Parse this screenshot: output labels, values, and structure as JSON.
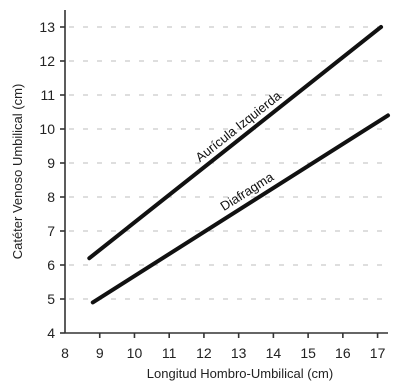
{
  "chart_data": {
    "type": "line",
    "xlabel": "Longitud Hombro-Umbilical (cm)",
    "ylabel": "Catéter Venoso Umbilical (cm)",
    "xlim": [
      8,
      17.3
    ],
    "ylim": [
      4,
      13.5
    ],
    "xticks": [
      8,
      9,
      10,
      11,
      12,
      13,
      14,
      15,
      16,
      17
    ],
    "yticks": [
      4,
      5,
      6,
      7,
      8,
      9,
      10,
      11,
      12,
      13
    ],
    "grid": true,
    "series": [
      {
        "name": "Aurícula Izquierda",
        "x": [
          8.7,
          17.1
        ],
        "y": [
          6.2,
          13.0
        ]
      },
      {
        "name": "Diafragma",
        "x": [
          8.8,
          17.3
        ],
        "y": [
          4.9,
          10.4
        ]
      }
    ]
  }
}
